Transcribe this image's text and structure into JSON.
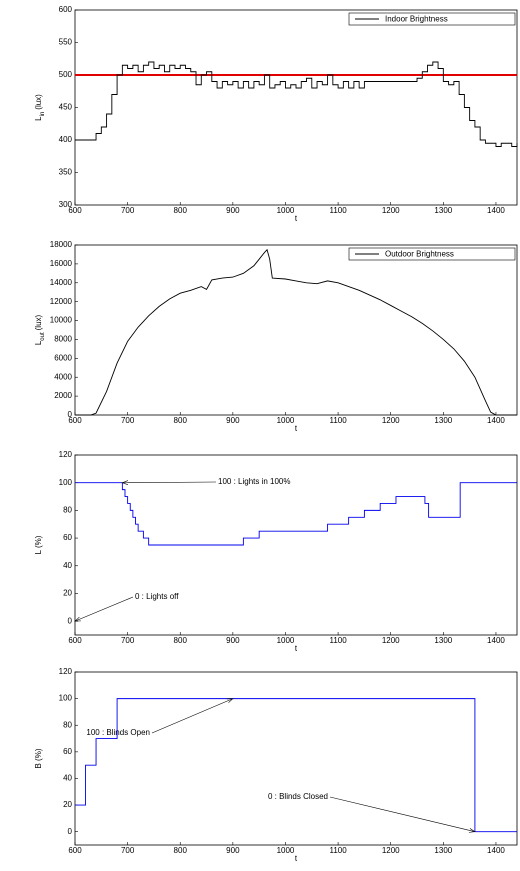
{
  "chart_data": [
    {
      "type": "line",
      "step": true,
      "xlabel": "t",
      "ylabel": "L",
      "ylabel_sub": "in",
      "ylabel_unit": "(lux)",
      "xlim": [
        600,
        1440
      ],
      "xticks": [
        600,
        700,
        800,
        900,
        1000,
        1100,
        1200,
        1300,
        1400
      ],
      "ylim": [
        300,
        600
      ],
      "yticks": [
        300,
        350,
        400,
        450,
        500,
        550,
        600
      ],
      "legend": "upper right",
      "x": [
        600,
        610,
        620,
        630,
        640,
        650,
        660,
        670,
        680,
        690,
        700,
        710,
        720,
        730,
        740,
        750,
        760,
        770,
        780,
        790,
        800,
        810,
        820,
        830,
        840,
        850,
        860,
        870,
        880,
        890,
        900,
        910,
        920,
        930,
        940,
        950,
        960,
        970,
        980,
        990,
        1000,
        1010,
        1020,
        1030,
        1040,
        1050,
        1060,
        1070,
        1080,
        1090,
        1100,
        1110,
        1120,
        1130,
        1140,
        1150,
        1160,
        1170,
        1180,
        1190,
        1200,
        1210,
        1220,
        1230,
        1240,
        1250,
        1260,
        1270,
        1280,
        1290,
        1300,
        1310,
        1320,
        1330,
        1340,
        1350,
        1360,
        1370,
        1380,
        1390,
        1400,
        1410,
        1420,
        1430,
        1440
      ],
      "series": [
        {
          "name": "Indoor Brightness",
          "color": "#000000",
          "values": [
            400,
            400,
            400,
            400,
            410,
            420,
            440,
            470,
            500,
            515,
            510,
            515,
            505,
            515,
            520,
            510,
            515,
            505,
            515,
            510,
            515,
            510,
            505,
            485,
            500,
            505,
            490,
            480,
            490,
            485,
            490,
            480,
            490,
            480,
            490,
            485,
            500,
            480,
            485,
            490,
            480,
            485,
            480,
            490,
            495,
            480,
            490,
            485,
            500,
            485,
            480,
            490,
            480,
            490,
            480,
            490,
            490,
            490,
            490,
            490,
            490,
            490,
            490,
            490,
            490,
            495,
            505,
            515,
            520,
            510,
            490,
            485,
            490,
            470,
            450,
            430,
            420,
            400,
            395,
            395,
            390,
            395,
            395,
            390,
            395
          ]
        }
      ],
      "hline": {
        "value": 500,
        "color": "#e00000"
      }
    },
    {
      "type": "line",
      "step": false,
      "xlabel": "t",
      "ylabel": "L",
      "ylabel_sub": "out",
      "ylabel_unit": "(lux)",
      "xlim": [
        600,
        1440
      ],
      "xticks": [
        600,
        700,
        800,
        900,
        1000,
        1100,
        1200,
        1300,
        1400
      ],
      "ylim": [
        0,
        18000
      ],
      "yticks": [
        0,
        2000,
        4000,
        6000,
        8000,
        10000,
        12000,
        14000,
        16000,
        18000
      ],
      "legend": "upper right",
      "x": [
        600,
        620,
        630,
        640,
        660,
        680,
        700,
        720,
        740,
        760,
        780,
        800,
        820,
        840,
        850,
        860,
        880,
        900,
        920,
        940,
        950,
        960,
        965,
        970,
        975,
        1000,
        1020,
        1040,
        1060,
        1080,
        1100,
        1120,
        1140,
        1160,
        1180,
        1200,
        1220,
        1240,
        1260,
        1280,
        1300,
        1320,
        1340,
        1360,
        1380,
        1390,
        1400,
        1440
      ],
      "series": [
        {
          "name": "Outdoor Brightness",
          "color": "#000000",
          "values": [
            0,
            0,
            0,
            200,
            2500,
            5500,
            7800,
            9300,
            10500,
            11500,
            12300,
            12900,
            13200,
            13600,
            13300,
            14300,
            14500,
            14600,
            15000,
            15800,
            16500,
            17200,
            17500,
            16500,
            14500,
            14400,
            14200,
            14000,
            13900,
            14200,
            14000,
            13600,
            13200,
            12700,
            12200,
            11600,
            11000,
            10400,
            9700,
            8900,
            8000,
            7000,
            5700,
            4000,
            1500,
            300,
            0,
            0
          ]
        }
      ]
    },
    {
      "type": "line",
      "step": true,
      "xlabel": "t",
      "ylabel": "L (%)",
      "xlim": [
        600,
        1440
      ],
      "xticks": [
        600,
        700,
        800,
        900,
        1000,
        1100,
        1200,
        1300,
        1400
      ],
      "ylim": [
        -10,
        120
      ],
      "yticks": [
        0,
        20,
        40,
        60,
        80,
        100,
        120
      ],
      "x": [
        600,
        690,
        695,
        700,
        705,
        710,
        715,
        720,
        730,
        740,
        760,
        920,
        950,
        1080,
        1120,
        1150,
        1180,
        1210,
        1265,
        1272,
        1332,
        1440
      ],
      "series": [
        {
          "name": null,
          "color": "#0000ee",
          "values": [
            100,
            95,
            90,
            85,
            80,
            75,
            70,
            65,
            60,
            55,
            55,
            60,
            65,
            70,
            75,
            80,
            85,
            90,
            85,
            75,
            100,
            100
          ]
        }
      ],
      "annotations": [
        {
          "text": "100 : Lights in 100%",
          "x": 690,
          "y": 100
        },
        {
          "text": "0 : Lights off",
          "x": 600,
          "y": 0
        }
      ]
    },
    {
      "type": "line",
      "step": true,
      "xlabel": "t",
      "ylabel": "B (%)",
      "xlim": [
        600,
        1440
      ],
      "xticks": [
        600,
        700,
        800,
        900,
        1000,
        1100,
        1200,
        1300,
        1400
      ],
      "ylim": [
        -10,
        120
      ],
      "yticks": [
        0,
        20,
        40,
        60,
        80,
        100,
        120
      ],
      "x": [
        600,
        620,
        640,
        680,
        1360,
        1440
      ],
      "series": [
        {
          "name": null,
          "color": "#0000ee",
          "values": [
            20,
            50,
            70,
            100,
            0,
            0
          ]
        }
      ],
      "annotations": [
        {
          "text": "100 : Blinds Open",
          "x": 900,
          "y": 100
        },
        {
          "text": "0 : Blinds Closed",
          "x": 1360,
          "y": 0
        }
      ]
    }
  ]
}
